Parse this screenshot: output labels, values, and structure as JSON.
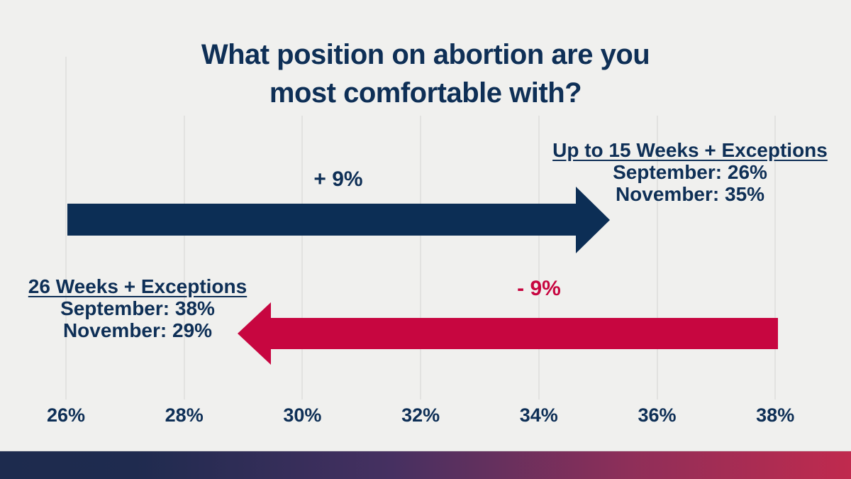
{
  "title": {
    "line1": "What position on abortion are you",
    "line2": "most comfortable with?"
  },
  "arrows": {
    "increase": {
      "change_label": "+ 9%",
      "color": "#0C2E55"
    },
    "decrease": {
      "change_label": "- 9%",
      "color": "#C70640"
    }
  },
  "labels": {
    "right": {
      "heading": "Up to 15 Weeks + Exceptions",
      "september": "September: 26%",
      "november": "November: 35%"
    },
    "left": {
      "heading": "26 Weeks + Exceptions",
      "september": "September: 38%",
      "november": "November: 29%"
    }
  },
  "axis": {
    "ticks": [
      "26%",
      "28%",
      "30%",
      "32%",
      "34%",
      "36%",
      "38%"
    ]
  },
  "colors": {
    "background": "#F0F0EE",
    "navy": "#0E2F56",
    "crimson": "#C70640",
    "gridline": "#E2E2E0",
    "footer_gradient_start": "#1D2B4E",
    "footer_gradient_end": "#C02A4E"
  },
  "chart_data": {
    "type": "bar",
    "variant": "horizontal-arrow-change",
    "title": "What position on abortion are you most comfortable with?",
    "xlabel": "",
    "ylabel": "",
    "x_axis": {
      "unit": "%",
      "min": 26,
      "max": 38,
      "ticks": [
        26,
        28,
        30,
        32,
        34,
        36,
        38
      ]
    },
    "grid": true,
    "legend": false,
    "series": [
      {
        "name": "Up to 15 Weeks + Exceptions",
        "september": 26,
        "november": 35,
        "change": 9,
        "arrow_from": 26,
        "arrow_to": 35,
        "direction": "increase",
        "color": "#0C2E55"
      },
      {
        "name": "26 Weeks + Exceptions",
        "september": 38,
        "november": 29,
        "change": -9,
        "arrow_from": 38,
        "arrow_to": 29,
        "direction": "decrease",
        "color": "#C70640"
      }
    ]
  }
}
